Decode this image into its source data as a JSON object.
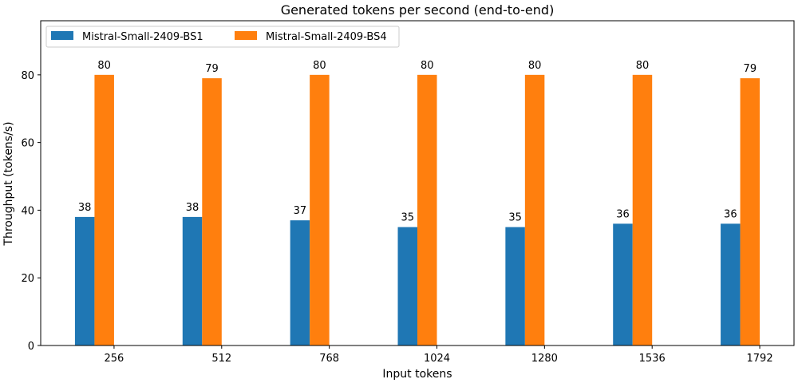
{
  "chart_data": {
    "type": "bar",
    "title": "Generated tokens per second (end-to-end)",
    "xlabel": "Input tokens",
    "ylabel": "Throughput (tokens/s)",
    "categories": [
      "256",
      "512",
      "768",
      "1024",
      "1280",
      "1536",
      "1792"
    ],
    "series": [
      {
        "name": "Mistral-Small-2409-BS1",
        "color": "#1f77b4",
        "values": [
          38,
          38,
          37,
          35,
          35,
          36,
          36
        ]
      },
      {
        "name": "Mistral-Small-2409-BS4",
        "color": "#ff7f0e",
        "values": [
          80,
          79,
          80,
          80,
          80,
          80,
          79
        ]
      }
    ],
    "ylim": [
      0,
      96
    ],
    "yticks": [
      0,
      20,
      40,
      60,
      80
    ],
    "grid": false,
    "legend": "top-left"
  }
}
